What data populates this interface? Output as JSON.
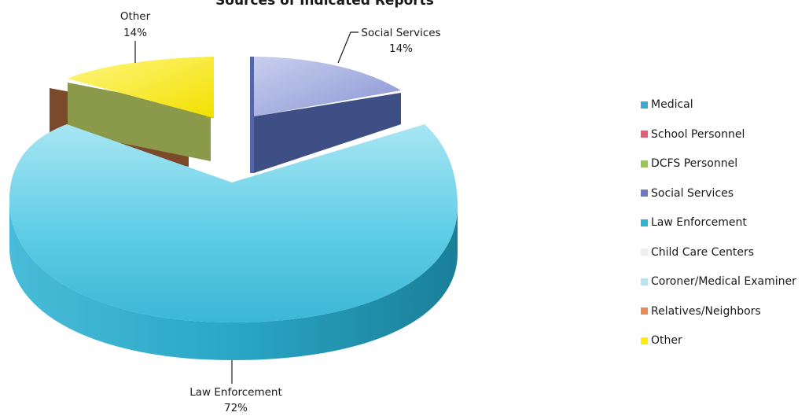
{
  "chart_data": {
    "type": "pie",
    "title": "Sources of Indicated Reports",
    "categories": [
      "Medical",
      "School Personnel",
      "DCFS Personnel",
      "Social Services",
      "Law Enforcement",
      "Child Care Centers",
      "Coroner/Medical Examiner",
      "Relatives/Neighbors",
      "Other"
    ],
    "values": [
      0,
      0,
      0,
      14,
      72,
      0,
      0,
      0,
      14
    ],
    "data_labels": [
      {
        "category": "Other",
        "name": "Other",
        "value": "14%"
      },
      {
        "category": "Social Services",
        "name": "Social Services",
        "value": "14%"
      },
      {
        "category": "Law Enforcement",
        "name": "Law Enforcement",
        "value": "72%"
      }
    ],
    "colors": {
      "Medical": "#3fa9d6",
      "School Personnel": "#e0607a",
      "DCFS Personnel": "#9bc45a",
      "Social Services": "#6e7bc4",
      "Law Enforcement": "#2fb6d2",
      "Child Care Centers": "#eeeeee",
      "Coroner/Medical Examiner": "#b8e3ef",
      "Relatives/Neighbors": "#e98b4e",
      "Other": "#ffee00"
    },
    "side_colors": {
      "Social Services": "#3e4f86",
      "Law Enforcement": "#1e86a0",
      "Other": "#b8ab00"
    },
    "extra_sides": [
      {
        "name": "DCFS Personnel",
        "color": "#8a9a4a"
      },
      {
        "name": "Relatives/Neighbors",
        "color": "#7a4a2a"
      }
    ],
    "legend_position": "right",
    "style": "3d-exploded"
  }
}
